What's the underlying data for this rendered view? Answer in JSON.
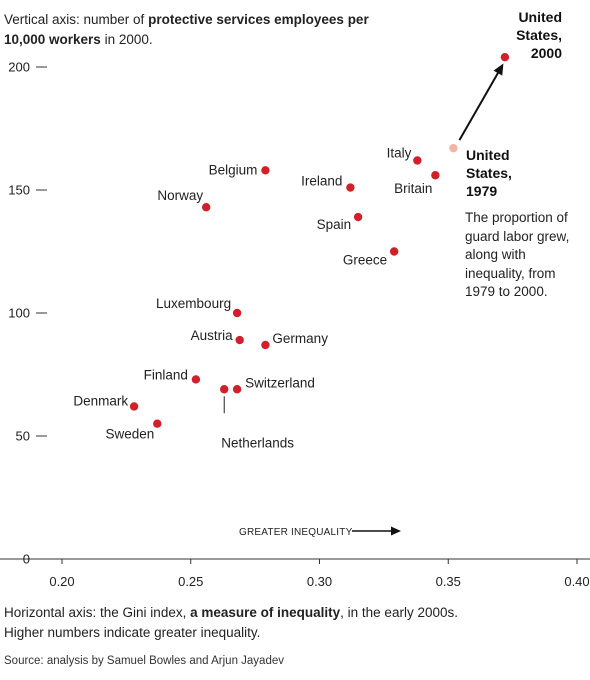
{
  "chart_data": {
    "type": "scatter",
    "yaxis_title": {
      "prefix": "Vertical axis: number of ",
      "bold": "protective services employees per 10,000 workers",
      "suffix": " in 2000."
    },
    "xaxis_caption": {
      "prefix": "Horizontal axis: the Gini index, ",
      "bold": "a measure of inequality",
      "suffix": ", in the early 2000s.",
      "line2": "Higher numbers indicate greater inequality."
    },
    "x_ticks": [
      "0.20",
      "0.25",
      "0.30",
      "0.35",
      "0.40"
    ],
    "y_ticks": [
      "0",
      "50",
      "100",
      "150",
      "200"
    ],
    "xlim": [
      0.2,
      0.4
    ],
    "ylim": [
      0,
      200
    ],
    "arrow_label": "GREATER INEQUALITY",
    "points": [
      {
        "name": "Belgium",
        "x": 0.279,
        "y": 158
      },
      {
        "name": "Norway",
        "x": 0.256,
        "y": 143
      },
      {
        "name": "Ireland",
        "x": 0.312,
        "y": 151
      },
      {
        "name": "Italy",
        "x": 0.338,
        "y": 162
      },
      {
        "name": "Britain",
        "x": 0.345,
        "y": 156
      },
      {
        "name": "Spain",
        "x": 0.315,
        "y": 139
      },
      {
        "name": "Greece",
        "x": 0.329,
        "y": 125
      },
      {
        "name": "Luxembourg",
        "x": 0.268,
        "y": 100
      },
      {
        "name": "Austria",
        "x": 0.269,
        "y": 89
      },
      {
        "name": "Germany",
        "x": 0.279,
        "y": 87
      },
      {
        "name": "Finland",
        "x": 0.252,
        "y": 73
      },
      {
        "name": "Switzerland",
        "x": 0.268,
        "y": 69
      },
      {
        "name": "Netherlands",
        "x": 0.263,
        "y": 69
      },
      {
        "name": "Denmark",
        "x": 0.228,
        "y": 62
      },
      {
        "name": "Sweden",
        "x": 0.237,
        "y": 55
      }
    ],
    "us_1979": {
      "label_lines": [
        "United",
        "States,",
        "1979"
      ],
      "x": 0.352,
      "y": 167
    },
    "us_2000": {
      "label_lines": [
        "United",
        "States,",
        "2000"
      ],
      "x": 0.372,
      "y": 204
    },
    "us_note": "The proportion of guard labor grew, along with inequality, from 1979 to 2000.",
    "colors": {
      "point": "#d0202a",
      "point_1979": "#f4b3a8",
      "axis": "#333333",
      "text": "#222222"
    }
  },
  "source": "Source: analysis by Samuel Bowles and Arjun Jayadev"
}
